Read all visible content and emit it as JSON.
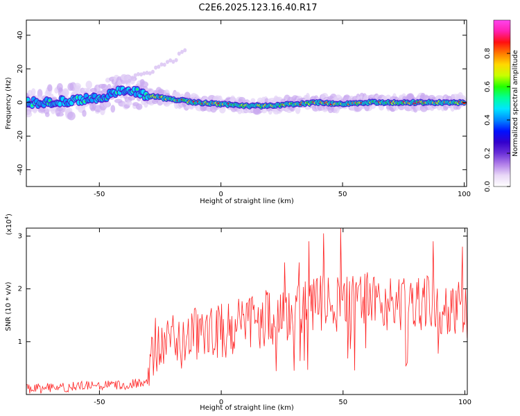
{
  "title": "C2E6.2025.123.16.40.R17",
  "spectrogram": {
    "type": "heatmap",
    "xlabel": "Height of straight line (km)",
    "ylabel": "Frequency (Hz)",
    "xlim": [
      -80,
      101
    ],
    "ylim": [
      -50,
      49
    ],
    "xticks": [
      -50,
      0,
      50,
      100
    ],
    "yticks": [
      -40,
      -20,
      0,
      20,
      40
    ],
    "colorbar": {
      "label": "Normalized spectral amplitude",
      "range": [
        0,
        1
      ],
      "ticks": [
        "0.0",
        "0.2",
        "0.4",
        "0.6",
        "0.8"
      ],
      "colors": [
        "#ffffff",
        "#e9d8f7",
        "#b27fe9",
        "#6a2fd8",
        "#3300cc",
        "#0011ff",
        "#0088ff",
        "#00e5ff",
        "#00ff99",
        "#22ff00",
        "#c8ff00",
        "#ffd800",
        "#ff7a00",
        "#ff1010",
        "#ff20b0",
        "#ff44ee"
      ]
    },
    "ridge": [
      {
        "x": -80,
        "y": 0
      },
      {
        "x": -70,
        "y": 0
      },
      {
        "x": -60,
        "y": 1
      },
      {
        "x": -50,
        "y": 3
      },
      {
        "x": -45,
        "y": 5
      },
      {
        "x": -40,
        "y": 7
      },
      {
        "x": -35,
        "y": 6
      },
      {
        "x": -30,
        "y": 4
      },
      {
        "x": -20,
        "y": 2
      },
      {
        "x": -10,
        "y": 0
      },
      {
        "x": 0,
        "y": -1
      },
      {
        "x": 10,
        "y": -2
      },
      {
        "x": 20,
        "y": -2
      },
      {
        "x": 30,
        "y": -1
      },
      {
        "x": 40,
        "y": 0
      },
      {
        "x": 50,
        "y": -1
      },
      {
        "x": 60,
        "y": 0
      },
      {
        "x": 70,
        "y": 0
      },
      {
        "x": 80,
        "y": 0
      },
      {
        "x": 90,
        "y": 0
      },
      {
        "x": 100,
        "y": 0
      }
    ],
    "upper_branch": [
      {
        "x": -40,
        "y": 12
      },
      {
        "x": -30,
        "y": 18
      },
      {
        "x": -20,
        "y": 25
      },
      {
        "x": -14,
        "y": 31
      }
    ]
  },
  "snr": {
    "type": "line",
    "xlabel": "Height of straight line (km)",
    "ylabel": "SNR (10 * v/v)",
    "multiplier": "(x10",
    "multiplier_exp": "4",
    "multiplier_close": ")",
    "xlim": [
      -80,
      101
    ],
    "ylim": [
      0,
      3.15
    ],
    "xticks": [
      -50,
      0,
      50,
      100
    ],
    "yticks": [
      1,
      2,
      3
    ],
    "color": "#ff2020",
    "envelope": [
      {
        "x": -80,
        "y": 0.1
      },
      {
        "x": -60,
        "y": 0.15
      },
      {
        "x": -40,
        "y": 0.18
      },
      {
        "x": -31,
        "y": 0.25
      },
      {
        "x": -28,
        "y": 0.8
      },
      {
        "x": -20,
        "y": 1.0
      },
      {
        "x": -10,
        "y": 1.1
      },
      {
        "x": 0,
        "y": 1.2
      },
      {
        "x": 10,
        "y": 1.3
      },
      {
        "x": 20,
        "y": 1.45
      },
      {
        "x": 30,
        "y": 1.6
      },
      {
        "x": 40,
        "y": 1.7
      },
      {
        "x": 50,
        "y": 1.75
      },
      {
        "x": 60,
        "y": 1.8
      },
      {
        "x": 70,
        "y": 1.75
      },
      {
        "x": 80,
        "y": 1.75
      },
      {
        "x": 90,
        "y": 1.7
      },
      {
        "x": 100,
        "y": 1.6
      }
    ],
    "peaks": [
      {
        "x": -27,
        "y": 1.45
      },
      {
        "x": -22,
        "y": 1.4
      },
      {
        "x": 26,
        "y": 2.5
      },
      {
        "x": 32,
        "y": 2.5
      },
      {
        "x": 36,
        "y": 2.9
      },
      {
        "x": 42,
        "y": 3.05
      },
      {
        "x": 49,
        "y": 3.15
      },
      {
        "x": 75,
        "y": 2.2
      },
      {
        "x": 87,
        "y": 2.9
      },
      {
        "x": 99,
        "y": 2.8
      }
    ]
  }
}
